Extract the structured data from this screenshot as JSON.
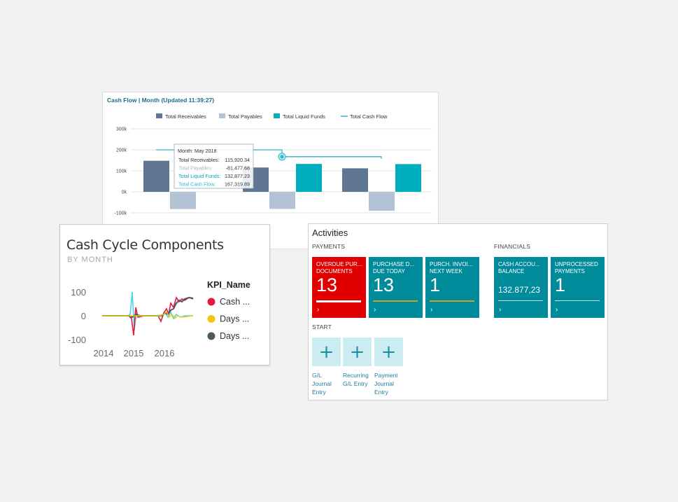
{
  "cash_flow": {
    "title": "Cash Flow | Month (Updated 11:39:27)",
    "legend": [
      "Total Receivables",
      "Total Payables",
      "Total Liquid Funds",
      "Total Cash Flow"
    ],
    "colors": {
      "receivables": "#5e7691",
      "payables": "#b3c2d5",
      "liquid": "#00afbd",
      "cashflow": "#2eb3d1"
    },
    "tooltip": {
      "header": "Month: May 2018",
      "rows": [
        {
          "label": "Total Receivables:",
          "value": "115,920.34"
        },
        {
          "label": "Total Payables:",
          "value": "-81,477.68"
        },
        {
          "label": "Total Liquid Funds:",
          "value": "132,877.23"
        },
        {
          "label": "Total Cash Flow:",
          "value": "167,319.89"
        }
      ]
    }
  },
  "chart_data": [
    {
      "type": "bar",
      "title": "Cash Flow | Month (Updated 11:39:27)",
      "yticks": [
        "300k",
        "200k",
        "100k",
        "0k",
        "-100k"
      ],
      "ylim": [
        -100000,
        300000
      ],
      "legend_position": "top",
      "series": [
        {
          "name": "Total Receivables",
          "values": [
            148000,
            115920.34,
            112000
          ]
        },
        {
          "name": "Total Payables",
          "values": [
            -82000,
            -81477.68,
            -90000
          ]
        },
        {
          "name": "Total Liquid Funds",
          "values": [
            null,
            132877.23,
            132000
          ]
        },
        {
          "name": "Total Cash Flow",
          "type": "line",
          "values": [
            200000,
            167319.89,
            167319.89
          ]
        }
      ]
    },
    {
      "type": "line",
      "title": "Cash Cycle Components",
      "subtitle": "BY MONTH",
      "xticks": [
        "2014",
        "2015",
        "2016"
      ],
      "yticks": [
        "100",
        "0",
        "-100"
      ],
      "ylim": [
        -100,
        100
      ],
      "legend_title": "KPI_Name",
      "series": [
        {
          "name": "Cash ...",
          "color": "#e8173c"
        },
        {
          "name": "Days ...",
          "color": "#f2c80f"
        },
        {
          "name": "Days ...",
          "color": "#4a5b64"
        }
      ]
    }
  ],
  "cash_cycle": {
    "title": "Cash Cycle Components",
    "subtitle": "BY MONTH",
    "legend_title": "KPI_Name",
    "legend": [
      {
        "label": "Cash ...",
        "color": "#e8173c"
      },
      {
        "label": "Days ...",
        "color": "#f2c80f"
      },
      {
        "label": "Days ...",
        "color": "#4a5b64"
      }
    ],
    "yticks": [
      "100",
      "0",
      "-100"
    ],
    "xticks": [
      "2014",
      "2015",
      "2016"
    ]
  },
  "activities": {
    "title": "Activities",
    "groups": {
      "payments": "PAYMENTS",
      "financials": "FINANCIALS",
      "start": "START"
    },
    "tiles": [
      {
        "label1": "OVERDUE PUR...",
        "label2": "DOCUMENTS",
        "value": "13",
        "bg": "#e00000",
        "bar": "#ffffff",
        "bar_fill": 1.0
      },
      {
        "label1": "PURCHASE D...",
        "label2": "DUE TODAY",
        "value": "13",
        "bg": "#008b9b",
        "bar": "#c9a227",
        "bar_fill": 1.0
      },
      {
        "label1": "PURCH. INVOI...",
        "label2": "NEXT WEEK",
        "value": "1",
        "bg": "#008b9b",
        "bar": "#c9a227",
        "bar_fill": 1.0
      },
      {
        "label1": "CASH ACCOU...",
        "label2": "BALANCE",
        "value": "132.877,23",
        "bg": "#008b9b",
        "bar": "#bfe6ea",
        "bar_fill": 1.0
      },
      {
        "label1": "UNPROCESSED",
        "label2": "PAYMENTS",
        "value": "1",
        "bg": "#008b9b",
        "bar": "#bfe6ea",
        "bar_fill": 1.0
      }
    ],
    "arrow": "›",
    "start_actions": [
      {
        "line1": "G/L",
        "line2": "Journal",
        "line3": "Entry",
        "icon": "plus-icon"
      },
      {
        "line1": "Recurring",
        "line2": "G/L Entry",
        "line3": "",
        "icon": "plus-icon"
      },
      {
        "line1": "Payment",
        "line2": "Journal",
        "line3": "Entry",
        "icon": "plus-icon"
      }
    ]
  }
}
